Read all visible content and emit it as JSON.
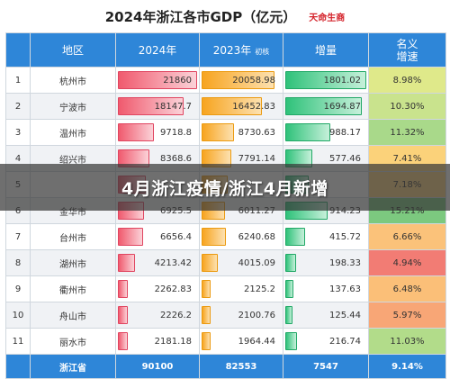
{
  "title": "2024年浙江各市GDP（亿元）",
  "brand": "天命生商",
  "overlay_text": "4月浙江疫情/浙江4月新增",
  "headers": {
    "rank": "",
    "region": "地区",
    "y2024": "2024年",
    "y2023": "2023年",
    "y2023_note": "初核",
    "increase": "增量",
    "growth": "名义\n增速"
  },
  "colors": {
    "header": "#2e86d8",
    "bar_2024": "#f05a6e",
    "bar_2023": "#f7a41f",
    "bar_increase": "#2fc27a"
  },
  "chart_data": {
    "type": "table",
    "title": "2024年浙江各市GDP（亿元）",
    "columns": [
      "",
      "地区",
      "2024年",
      "2023年 初核",
      "增量",
      "名义增速"
    ],
    "rows": [
      {
        "rank": "1",
        "city": "杭州市",
        "gdp2024": 21860,
        "gdp2024_text": "21860",
        "gdp2023": 20058.98,
        "gdp2023_text": "20058.98",
        "increase": 1801.02,
        "increase_text": "1801.02",
        "growth": 8.98,
        "growth_text": "8.98%",
        "growth_color": "#dfe98a"
      },
      {
        "rank": "2",
        "city": "宁波市",
        "gdp2024": 18147.7,
        "gdp2024_text": "18147.7",
        "gdp2023": 16452.83,
        "gdp2023_text": "16452.83",
        "increase": 1694.87,
        "increase_text": "1694.87",
        "growth": 10.3,
        "growth_text": "10.30%",
        "growth_color": "#c9e38d"
      },
      {
        "rank": "3",
        "city": "温州市",
        "gdp2024": 9718.8,
        "gdp2024_text": "9718.8",
        "gdp2023": 8730.63,
        "gdp2023_text": "8730.63",
        "increase": 988.17,
        "increase_text": "988.17",
        "growth": 11.32,
        "growth_text": "11.32%",
        "growth_color": "#a9d98a"
      },
      {
        "rank": "4",
        "city": "绍兴市",
        "gdp2024": 8368.6,
        "gdp2024_text": "8368.6",
        "gdp2023": 7791.14,
        "gdp2023_text": "7791.14",
        "increase": 577.46,
        "increase_text": "577.46",
        "growth": 7.41,
        "growth_text": "7.41%",
        "growth_color": "#fbd27a"
      },
      {
        "rank": "5",
        "city": "",
        "gdp2024": 7410,
        "gdp2024_text": "",
        "gdp2023": 6910,
        "gdp2023_text": "",
        "increase": 497,
        "increase_text": "",
        "growth": 7.18,
        "growth_text": "7.18%",
        "growth_color": "#fbd07a"
      },
      {
        "rank": "6",
        "city": "金华市",
        "gdp2024": 6925.5,
        "gdp2024_text": "6925.5",
        "gdp2023": 6011.27,
        "gdp2023_text": "6011.27",
        "increase": 914.23,
        "increase_text": "914.23",
        "growth": 15.21,
        "growth_text": "15.21%",
        "growth_color": "#7cc97f"
      },
      {
        "rank": "7",
        "city": "台州市",
        "gdp2024": 6656.4,
        "gdp2024_text": "6656.4",
        "gdp2023": 6240.68,
        "gdp2023_text": "6240.68",
        "increase": 415.72,
        "increase_text": "415.72",
        "growth": 6.66,
        "growth_text": "6.66%",
        "growth_color": "#fbc27a"
      },
      {
        "rank": "8",
        "city": "湖州市",
        "gdp2024": 4213.42,
        "gdp2024_text": "4213.42",
        "gdp2023": 4015.09,
        "gdp2023_text": "4015.09",
        "increase": 198.33,
        "increase_text": "198.33",
        "growth": 4.94,
        "growth_text": "4.94%",
        "growth_color": "#f27c74"
      },
      {
        "rank": "9",
        "city": "衢州市",
        "gdp2024": 2262.83,
        "gdp2024_text": "2262.83",
        "gdp2023": 2125.2,
        "gdp2023_text": "2125.2",
        "increase": 137.63,
        "increase_text": "137.63",
        "growth": 6.48,
        "growth_text": "6.48%",
        "growth_color": "#fbbf78"
      },
      {
        "rank": "10",
        "city": "舟山市",
        "gdp2024": 2226.2,
        "gdp2024_text": "2226.2",
        "gdp2023": 2100.76,
        "gdp2023_text": "2100.76",
        "increase": 125.44,
        "increase_text": "125.44",
        "growth": 5.97,
        "growth_text": "5.97%",
        "growth_color": "#f8a676"
      },
      {
        "rank": "11",
        "city": "丽水市",
        "gdp2024": 2181.18,
        "gdp2024_text": "2181.18",
        "gdp2023": 1964.44,
        "gdp2023_text": "1964.44",
        "increase": 216.74,
        "increase_text": "216.74",
        "growth": 11.03,
        "growth_text": "11.03%",
        "growth_color": "#b2dc8a"
      }
    ],
    "total": {
      "label": "浙江省",
      "gdp2024_text": "90100",
      "gdp2023_text": "82553",
      "increase_text": "7547",
      "growth_text": "9.14%"
    },
    "bar_max": {
      "gdp": 21860,
      "increase": 1801.02
    }
  }
}
